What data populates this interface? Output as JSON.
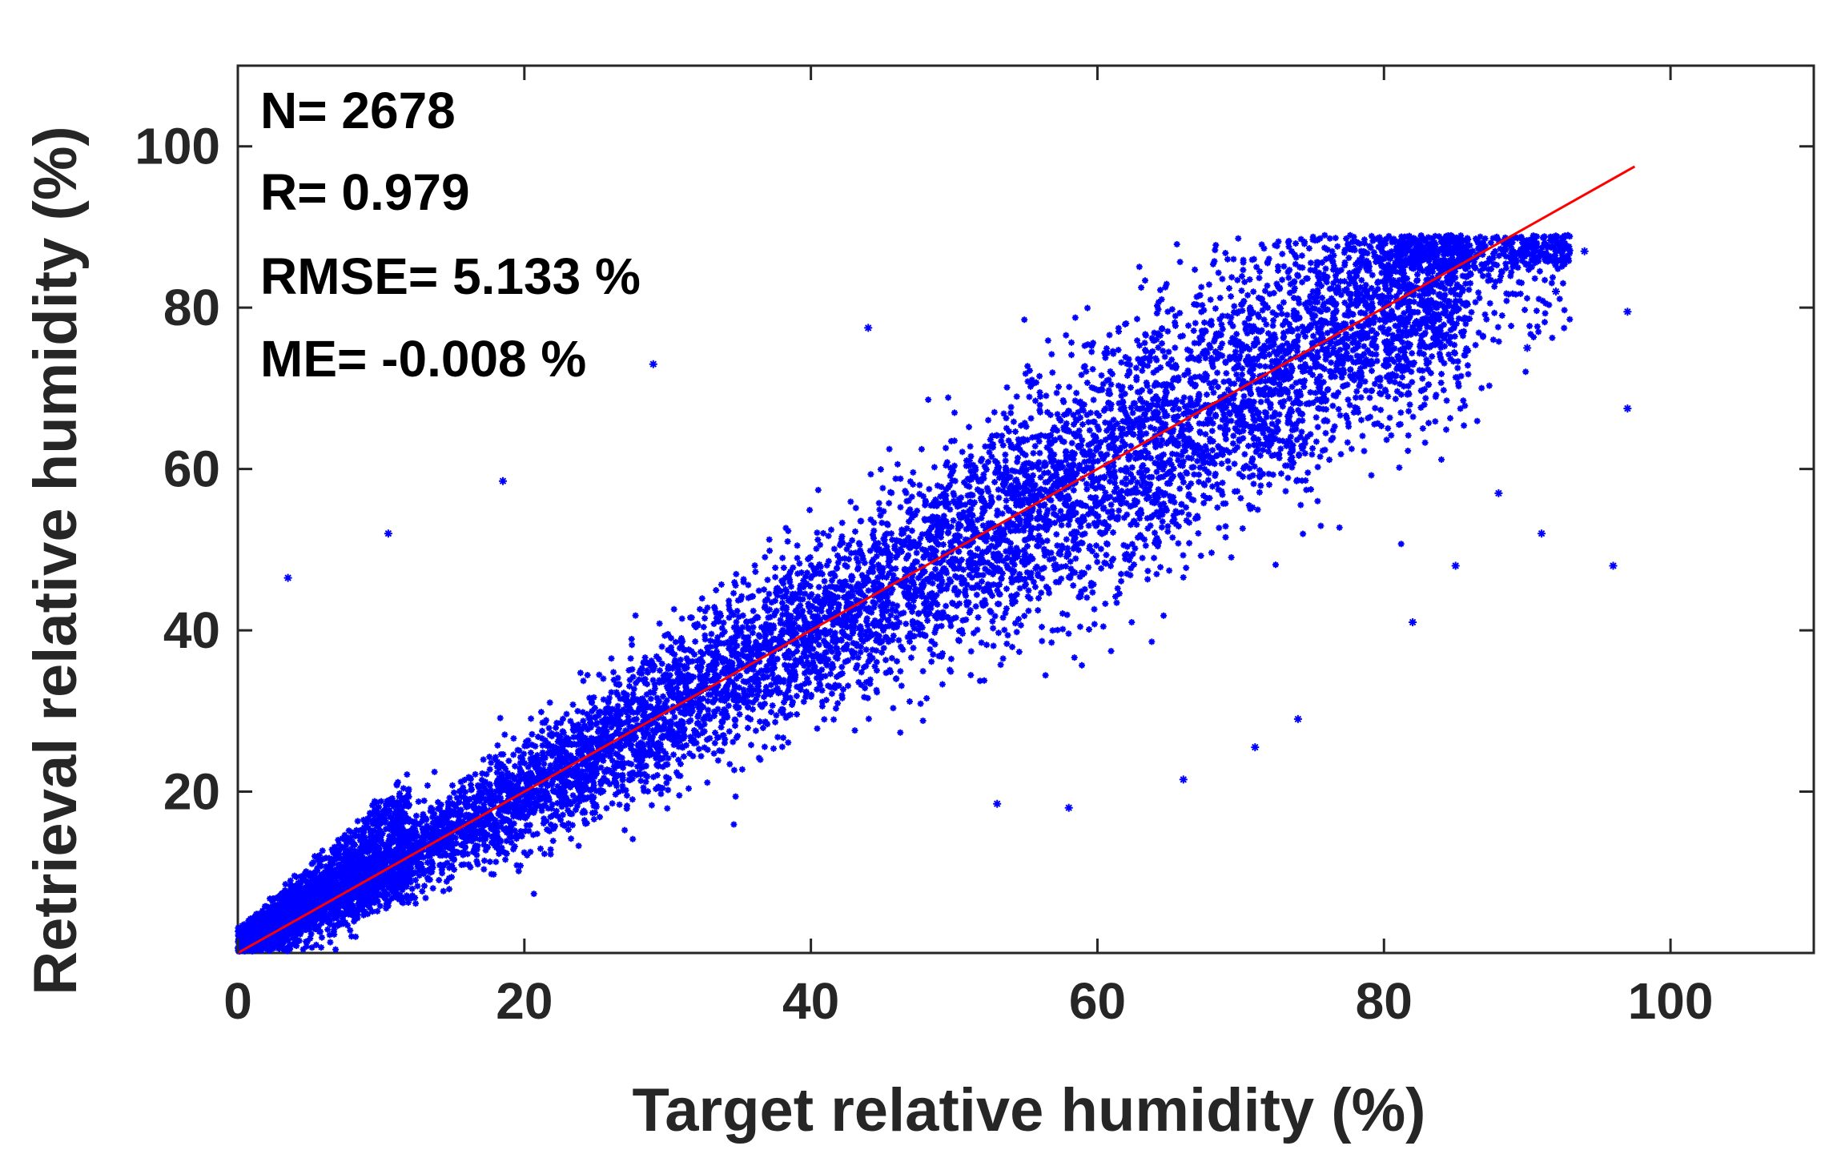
{
  "chart_data": {
    "type": "scatter",
    "xlabel": "Target relative humidity (%)",
    "ylabel": "Retrieval relative humidity (%)",
    "xlim": [
      0,
      110
    ],
    "ylim": [
      0,
      110
    ],
    "x_ticks": [
      0,
      20,
      40,
      60,
      80,
      100
    ],
    "y_ticks": [
      20,
      40,
      60,
      80,
      100
    ],
    "y_tick_labels": [
      "20",
      "40",
      "60",
      "80",
      "100"
    ],
    "x_tick_labels": [
      "0",
      "20",
      "40",
      "60",
      "80",
      "100"
    ],
    "grid": false,
    "marker": "*",
    "colors": {
      "points": "#0000ff",
      "fit_line": "#ff0000",
      "axes": "#262626"
    },
    "stats": {
      "n": "N= 2678",
      "r": "R= 0.979",
      "rmse": "RMSE= 5.133 %",
      "me": "ME= -0.008 %"
    },
    "fit_line": {
      "x": [
        0,
        97.5
      ],
      "y": [
        0,
        97.5
      ]
    },
    "point_cloud": {
      "x_range": [
        0,
        97.5
      ],
      "y_range": [
        0,
        89
      ],
      "center_relation": "y ≈ x",
      "spread_rmse": 5.133
    },
    "outlier_points": [
      {
        "x": 3.5,
        "y": 46.5
      },
      {
        "x": 10.5,
        "y": 52
      },
      {
        "x": 18.5,
        "y": 58.5
      },
      {
        "x": 29,
        "y": 73
      },
      {
        "x": 44,
        "y": 77.5
      },
      {
        "x": 66,
        "y": 21.5
      },
      {
        "x": 71,
        "y": 25.5
      },
      {
        "x": 74,
        "y": 29
      },
      {
        "x": 82,
        "y": 41
      },
      {
        "x": 88,
        "y": 57
      },
      {
        "x": 91,
        "y": 52
      },
      {
        "x": 94,
        "y": 87
      },
      {
        "x": 96,
        "y": 48
      },
      {
        "x": 97,
        "y": 67.5
      },
      {
        "x": 97,
        "y": 79.5
      },
      {
        "x": 92,
        "y": 82
      },
      {
        "x": 58,
        "y": 18
      },
      {
        "x": 53,
        "y": 18.5
      },
      {
        "x": 85,
        "y": 48
      },
      {
        "x": 90,
        "y": 75
      }
    ]
  }
}
